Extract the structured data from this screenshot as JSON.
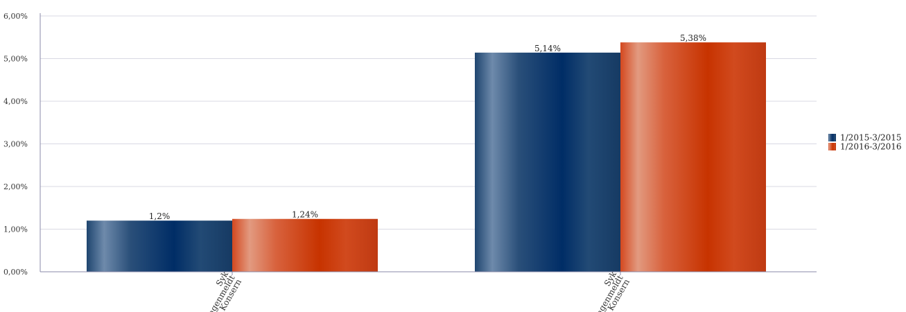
{
  "chart_data": {
    "type": "bar",
    "categories": [
      [
        "Syk",
        "fagenmeldt",
        "Konsern"
      ],
      [
        "Syk",
        "fagenmeldt",
        "Konsern"
      ]
    ],
    "series": [
      {
        "name": "1/2015-3/2015",
        "values": [
          1.2,
          5.14
        ],
        "labels": [
          "1,2%",
          "5,14%"
        ],
        "color": "#1f4570"
      },
      {
        "name": "1/2016-3/2016",
        "values": [
          1.24,
          5.38
        ],
        "labels": [
          "1,24%",
          "5,38%"
        ],
        "color": "#d2461d"
      }
    ],
    "y_ticks": [
      "0,00%",
      "1,00%",
      "2,00%",
      "3,00%",
      "4,00%",
      "5,00%",
      "6,00%"
    ],
    "ylim": [
      0,
      6
    ],
    "grid": true,
    "legend": "right",
    "title": "",
    "xlabel": "",
    "ylabel": ""
  }
}
